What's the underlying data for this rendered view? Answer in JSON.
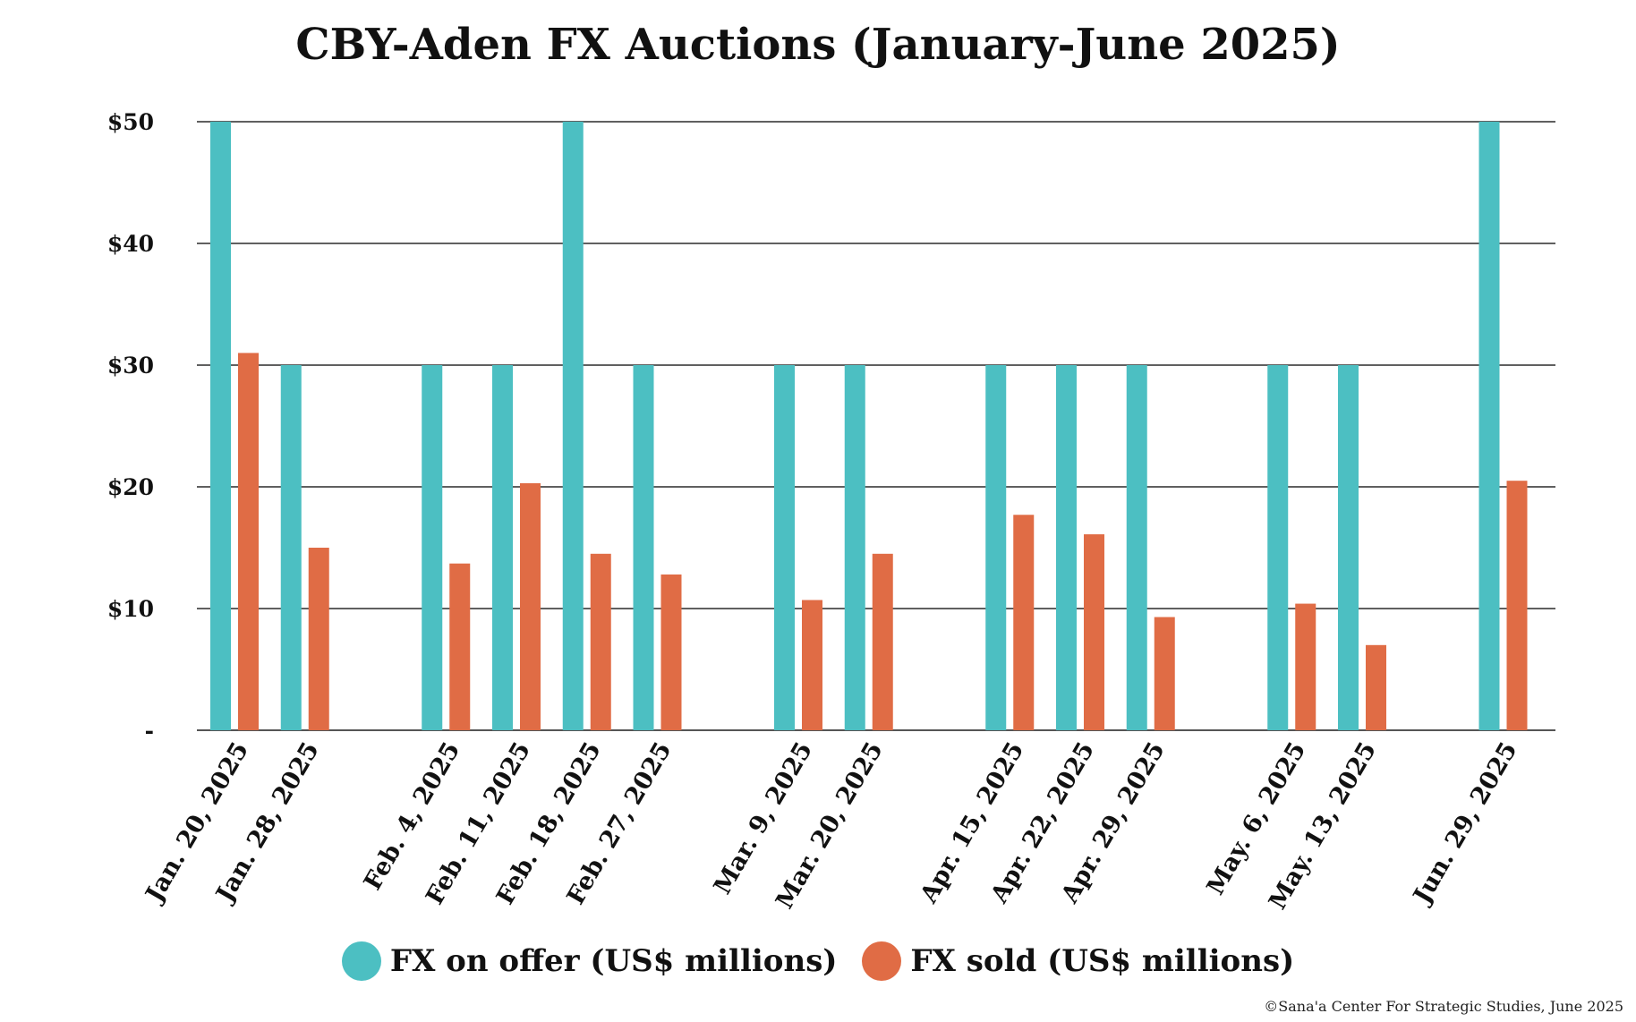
{
  "colors": {
    "offer": "#4cbfc2",
    "sold": "#e06c45",
    "grid": "#000000"
  },
  "credit": "©Sana'a Center For Strategic Studies, June 2025",
  "chart_data": {
    "type": "bar",
    "title": "CBY-Aden FX Auctions (January-June 2025)",
    "xlabel": "",
    "ylabel": "",
    "ylim": [
      0,
      50
    ],
    "yticks": [
      {
        "value": 0,
        "label": "-"
      },
      {
        "value": 10,
        "label": "$10"
      },
      {
        "value": 20,
        "label": "$20"
      },
      {
        "value": 30,
        "label": "$30"
      },
      {
        "value": 40,
        "label": "$40"
      },
      {
        "value": 50,
        "label": "$50"
      }
    ],
    "grid": true,
    "legend_position": "bottom",
    "categories": [
      "Jan. 20, 2025",
      "Jan. 28, 2025",
      "",
      "Feb. 4, 2025",
      "Feb. 11, 2025",
      "Feb. 18, 2025",
      "Feb. 27, 2025",
      "",
      "Mar. 9, 2025",
      "Mar. 20, 2025",
      "",
      "Apr. 15, 2025",
      "Apr. 22, 2025",
      "Apr. 29, 2025",
      "",
      "May. 6, 2025",
      "May. 13, 2025",
      "",
      "Jun. 29, 2025"
    ],
    "series": [
      {
        "name": "FX on offer (US$ millions)",
        "color": "#4cbfc2",
        "values": [
          50,
          30,
          null,
          30,
          30,
          50,
          30,
          null,
          30,
          30,
          null,
          30,
          30,
          30,
          null,
          30,
          30,
          null,
          50
        ]
      },
      {
        "name": "FX sold (US$ millions)",
        "color": "#e06c45",
        "values": [
          31,
          15,
          null,
          13.7,
          20.3,
          14.5,
          12.8,
          null,
          10.7,
          14.5,
          null,
          17.7,
          16.1,
          9.3,
          null,
          10.4,
          7,
          null,
          20.5
        ]
      }
    ]
  }
}
